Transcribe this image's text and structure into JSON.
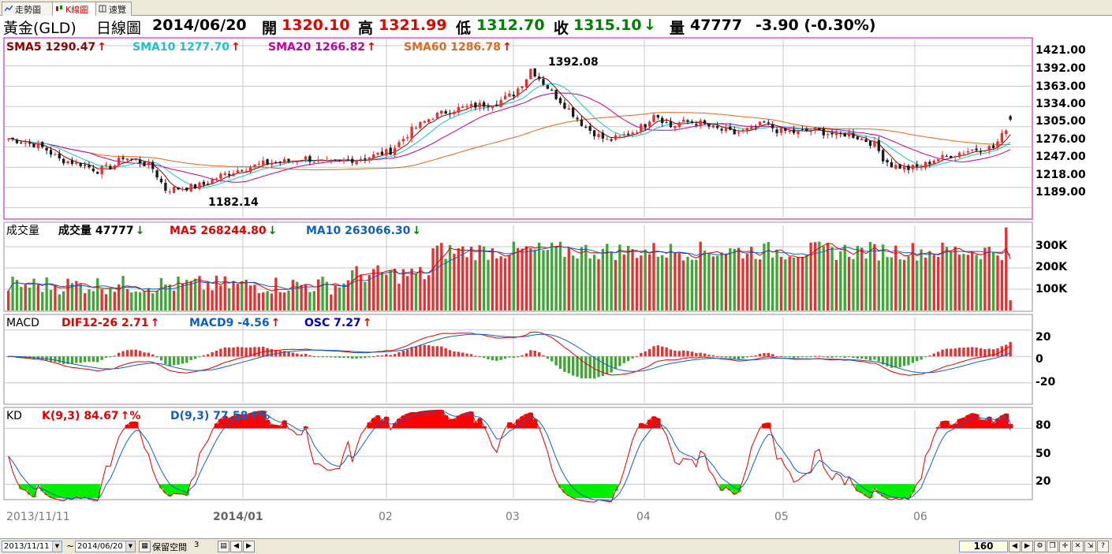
{
  "tabs": [
    {
      "label": "走勢圖",
      "active": false
    },
    {
      "label": "K線圖",
      "active": true
    },
    {
      "label": "速覽",
      "active": false
    }
  ],
  "quote": {
    "name": "黃金(GLD)",
    "chart_kind": "日線圖",
    "date": "2014/06/20",
    "open_label": "開",
    "open": "1320.10",
    "high_label": "高",
    "high": "1321.99",
    "low_label": "低",
    "low": "1312.70",
    "close_label": "收",
    "close": "1315.10",
    "close_arrow": "↓",
    "volume_label": "量",
    "volume": "47777",
    "change": "-3.90 (-0.30%)"
  },
  "price_panel": {
    "legend": [
      {
        "label": "SMA5 1290.47",
        "arrow": "↑",
        "color": "#8b0000"
      },
      {
        "label": "SMA10 1277.70",
        "arrow": "↑",
        "color": "#20c0c8"
      },
      {
        "label": "SMA20 1266.82",
        "arrow": "↑",
        "color": "#c000a0"
      },
      {
        "label": "SMA60 1286.78",
        "arrow": "↑",
        "color": "#e06820"
      }
    ],
    "y_ticks": [
      "1421.00",
      "1392.00",
      "1363.00",
      "1334.00",
      "1305.00",
      "1276.00",
      "1247.00",
      "1218.00",
      "1189.00"
    ],
    "high_annotation": "1392.08",
    "low_annotation": "1182.14"
  },
  "volume_panel": {
    "legend": [
      {
        "label": "成交量",
        "color": "#000000",
        "arrow": ""
      },
      {
        "label": "成交量 47777",
        "color": "#000000",
        "arrow": "↓"
      },
      {
        "label": "MA5 268244.80",
        "color": "#e00000",
        "arrow": "↓"
      },
      {
        "label": "MA10 263066.30",
        "color": "#1060c0",
        "arrow": "↓"
      }
    ],
    "y_ticks": [
      "300K",
      "200K",
      "100K"
    ]
  },
  "macd_panel": {
    "legend": [
      {
        "label": "MACD",
        "color": "#000000",
        "arrow": ""
      },
      {
        "label": "DIF12-26 2.71",
        "color": "#e00000",
        "arrow": "↑"
      },
      {
        "label": "MACD9 -4.56",
        "color": "#1060c0",
        "arrow": "↑"
      },
      {
        "label": "OSC 7.27",
        "color": "#0000c0",
        "arrow": "↑"
      }
    ],
    "y_ticks": [
      "20",
      "0",
      "-20"
    ]
  },
  "kd_panel": {
    "legend": [
      {
        "label": "KD",
        "color": "#000000",
        "arrow": ""
      },
      {
        "label": "K(9,3) 84.67",
        "color": "#e00000",
        "arrow": "↑%"
      },
      {
        "label": "D(9,3) 77.58",
        "color": "#1060c0",
        "arrow": "↑%"
      }
    ],
    "y_ticks": [
      "80",
      "50",
      "20"
    ]
  },
  "x_axis": {
    "labels": [
      "2013/11/11",
      "2014/01",
      "02",
      "03",
      "04",
      "05",
      "06"
    ]
  },
  "statusbar": {
    "start_date": "2013/11/11",
    "tilde": "~",
    "end_date": "2014/06/20",
    "reserve_label": "保留空間",
    "reserve_value": "3",
    "bar_count": "160"
  },
  "colors": {
    "up": "#e83030",
    "down": "#1a1a1a",
    "volume_up": "#e83030",
    "volume_down": "#3fa535",
    "kd_high_fill": "#ff0000",
    "kd_low_fill": "#00ee00",
    "panel_border_active": "#c000c0",
    "grid": "#c8c8c8"
  },
  "chart_data": {
    "type": "candlestick",
    "bar_count": 160,
    "price_range": [
      1175,
      1430
    ],
    "last_bar": {
      "date": "2014/06/20",
      "open": 1320.1,
      "high": 1321.99,
      "low": 1312.7,
      "close": 1315.1,
      "volume": 47777
    },
    "max_high": {
      "value": 1392.08,
      "month": "2014/03"
    },
    "min_low": {
      "value": 1182.14,
      "month": "2013/12"
    },
    "close_anchors": [
      [
        0,
        1288
      ],
      [
        6,
        1280
      ],
      [
        9,
        1272
      ],
      [
        12,
        1258
      ],
      [
        17,
        1252
      ],
      [
        21,
        1242
      ],
      [
        25,
        1250
      ],
      [
        27,
        1262
      ],
      [
        31,
        1255
      ],
      [
        34,
        1245
      ],
      [
        37,
        1215
      ],
      [
        42,
        1218
      ],
      [
        46,
        1222
      ],
      [
        50,
        1235
      ],
      [
        55,
        1245
      ],
      [
        60,
        1252
      ],
      [
        65,
        1255
      ],
      [
        70,
        1260
      ],
      [
        75,
        1252
      ],
      [
        80,
        1257
      ],
      [
        85,
        1262
      ],
      [
        90,
        1270
      ],
      [
        95,
        1300
      ],
      [
        100,
        1320
      ],
      [
        105,
        1330
      ],
      [
        110,
        1335
      ],
      [
        115,
        1340
      ],
      [
        119,
        1352
      ],
      [
        122,
        1375
      ],
      [
        123,
        1388
      ],
      [
        126,
        1368
      ],
      [
        129,
        1348
      ],
      [
        132,
        1330
      ],
      [
        135,
        1310
      ],
      [
        137,
        1300
      ],
      [
        139,
        1292
      ],
      [
        141,
        1285
      ],
      [
        144,
        1290
      ],
      [
        147,
        1298
      ],
      [
        150,
        1308
      ],
      [
        152,
        1325
      ],
      [
        154,
        1315
      ],
      [
        156,
        1305
      ],
      [
        158,
        1310
      ],
      [
        160,
        1312
      ],
      [
        163,
        1310
      ],
      [
        166,
        1303
      ],
      [
        168,
        1300
      ],
      [
        171,
        1295
      ],
      [
        175,
        1302
      ],
      [
        178,
        1310
      ],
      [
        181,
        1300
      ],
      [
        185,
        1297
      ],
      [
        190,
        1300
      ],
      [
        195,
        1293
      ],
      [
        198,
        1295
      ],
      [
        200,
        1290
      ],
      [
        204,
        1280
      ],
      [
        206,
        1260
      ],
      [
        208,
        1250
      ],
      [
        212,
        1245
      ],
      [
        215,
        1248
      ],
      [
        218,
        1258
      ],
      [
        221,
        1262
      ],
      [
        224,
        1268
      ],
      [
        227,
        1272
      ],
      [
        230,
        1275
      ],
      [
        232,
        1275
      ],
      [
        234,
        1292
      ],
      [
        236,
        1315
      ]
    ],
    "volume_range": [
      0,
      400000
    ],
    "volume_ticks": [
      100000,
      200000,
      300000
    ],
    "macd_range": [
      -35,
      30
    ],
    "macd_ticks": [
      20,
      0,
      -20
    ],
    "kd_range": [
      5,
      100
    ],
    "kd_ticks": [
      80,
      50,
      20
    ],
    "kd_last": {
      "K": 84.67,
      "D": 77.58
    },
    "macd_last": {
      "DIF": 2.71,
      "MACD9": -4.56,
      "OSC": 7.27
    },
    "volume_ma_last": {
      "MA5": 268244.8,
      "MA10": 263066.3
    }
  }
}
